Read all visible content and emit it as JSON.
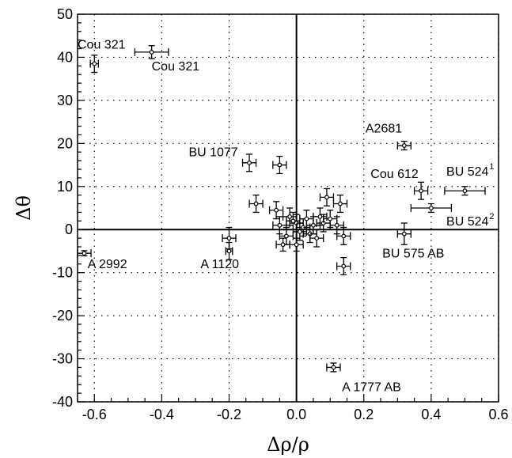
{
  "chart_data": {
    "type": "scatter",
    "title": "",
    "xlabel": "Δρ/ρ",
    "ylabel": "Δθ",
    "xlim": [
      -0.65,
      0.6
    ],
    "ylim": [
      -40,
      50
    ],
    "xticks": [
      -0.6,
      -0.4,
      -0.2,
      0.0,
      0.2,
      0.4,
      0.6
    ],
    "xtick_labels": [
      "-0.6",
      "-0.4",
      "-0.2",
      "0.0",
      "0.2",
      "0.4",
      "0.6"
    ],
    "yticks": [
      -40,
      -30,
      -20,
      -10,
      0,
      10,
      20,
      30,
      40,
      50
    ],
    "ytick_labels": [
      "-40",
      "-30",
      "-20",
      "-10",
      "0",
      "10",
      "20",
      "30",
      "40",
      "50"
    ],
    "grid": "dotted",
    "zero_lines": true,
    "colors": {
      "ink": "#000000",
      "grid": "#000000",
      "background": "#ffffff"
    },
    "points": [
      {
        "x": -0.6,
        "y": 38.5,
        "xerr": 0.012,
        "yerr": 2.0
      },
      {
        "x": -0.43,
        "y": 41.2,
        "xerr": 0.05,
        "yerr": 1.5
      },
      {
        "x": -0.63,
        "y": -5.5,
        "xerr": 0.02,
        "yerr": 0.6
      },
      {
        "x": -0.2,
        "y": -2.0,
        "xerr": 0.02,
        "yerr": 2.5
      },
      {
        "x": -0.2,
        "y": -5.0,
        "xerr": 0.01,
        "yerr": 2.0
      },
      {
        "x": -0.14,
        "y": 15.5,
        "xerr": 0.02,
        "yerr": 2.0
      },
      {
        "x": -0.05,
        "y": 15.0,
        "xerr": 0.02,
        "yerr": 2.0
      },
      {
        "x": -0.12,
        "y": 6.0,
        "xerr": 0.02,
        "yerr": 2.0
      },
      {
        "x": -0.06,
        "y": 4.5,
        "xerr": 0.02,
        "yerr": 2.0
      },
      {
        "x": -0.05,
        "y": 1.0,
        "xerr": 0.02,
        "yerr": 2.0
      },
      {
        "x": -0.03,
        "y": -1.5,
        "xerr": 0.02,
        "yerr": 2.0
      },
      {
        "x": -0.02,
        "y": 3.0,
        "xerr": 0.02,
        "yerr": 2.0
      },
      {
        "x": -0.01,
        "y": 2.0,
        "xerr": 0.02,
        "yerr": 2.0
      },
      {
        "x": 0.0,
        "y": 1.5,
        "xerr": 0.02,
        "yerr": 2.0
      },
      {
        "x": 0.01,
        "y": -0.5,
        "xerr": 0.02,
        "yerr": 2.0
      },
      {
        "x": 0.02,
        "y": 0.5,
        "xerr": 0.02,
        "yerr": 2.0
      },
      {
        "x": 0.03,
        "y": 2.5,
        "xerr": 0.02,
        "yerr": 2.0
      },
      {
        "x": 0.04,
        "y": -1.0,
        "xerr": 0.02,
        "yerr": 2.0
      },
      {
        "x": 0.05,
        "y": 1.0,
        "xerr": 0.02,
        "yerr": 2.0
      },
      {
        "x": 0.06,
        "y": -2.0,
        "xerr": 0.02,
        "yerr": 2.0
      },
      {
        "x": 0.07,
        "y": 3.0,
        "xerr": 0.02,
        "yerr": 2.0
      },
      {
        "x": 0.08,
        "y": 1.5,
        "xerr": 0.02,
        "yerr": 2.0
      },
      {
        "x": -0.04,
        "y": -3.5,
        "xerr": 0.02,
        "yerr": 1.5
      },
      {
        "x": 0.0,
        "y": -3.5,
        "xerr": 0.02,
        "yerr": 1.5
      },
      {
        "x": 0.1,
        "y": 2.5,
        "xerr": 0.02,
        "yerr": 2.0
      },
      {
        "x": 0.09,
        "y": 7.5,
        "xerr": 0.02,
        "yerr": 2.0
      },
      {
        "x": 0.13,
        "y": 6.0,
        "xerr": 0.02,
        "yerr": 2.0
      },
      {
        "x": 0.12,
        "y": 1.0,
        "xerr": 0.02,
        "yerr": 2.0
      },
      {
        "x": 0.14,
        "y": -1.5,
        "xerr": 0.02,
        "yerr": 2.0
      },
      {
        "x": 0.14,
        "y": -8.5,
        "xerr": 0.02,
        "yerr": 2.0
      },
      {
        "x": 0.11,
        "y": -32.0,
        "xerr": 0.02,
        "yerr": 1.0
      },
      {
        "x": 0.32,
        "y": 19.5,
        "xerr": 0.02,
        "yerr": 1.0
      },
      {
        "x": 0.37,
        "y": 9.0,
        "xerr": 0.02,
        "yerr": 2.0
      },
      {
        "x": 0.5,
        "y": 9.0,
        "xerr": 0.06,
        "yerr": 1.0
      },
      {
        "x": 0.4,
        "y": 5.0,
        "xerr": 0.06,
        "yerr": 1.0
      },
      {
        "x": 0.32,
        "y": -1.0,
        "xerr": 0.02,
        "yerr": 2.5
      }
    ],
    "annotations": [
      {
        "text": "Cou 321",
        "sup": "",
        "x": -0.65,
        "y": 42.0
      },
      {
        "text": "Cou 321",
        "sup": "",
        "x": -0.43,
        "y": 37.0
      },
      {
        "text": "BU 1077",
        "sup": "",
        "x": -0.32,
        "y": 17.0
      },
      {
        "text": "A2681",
        "sup": "",
        "x": 0.205,
        "y": 22.5
      },
      {
        "text": "Cou 612",
        "sup": "",
        "x": 0.22,
        "y": 12.0
      },
      {
        "text": "BU 524",
        "sup": "1",
        "x": 0.445,
        "y": 12.5
      },
      {
        "text": "BU 524",
        "sup": "2",
        "x": 0.445,
        "y": 1.0
      },
      {
        "text": "BU 575 AB",
        "sup": "",
        "x": 0.255,
        "y": -6.5
      },
      {
        "text": "A 2992",
        "sup": "",
        "x": -0.62,
        "y": -9.0
      },
      {
        "text": "A 1120",
        "sup": "",
        "x": -0.285,
        "y": -9.0
      },
      {
        "text": "A 1777 AB",
        "sup": "",
        "x": 0.135,
        "y": -37.5
      }
    ]
  }
}
